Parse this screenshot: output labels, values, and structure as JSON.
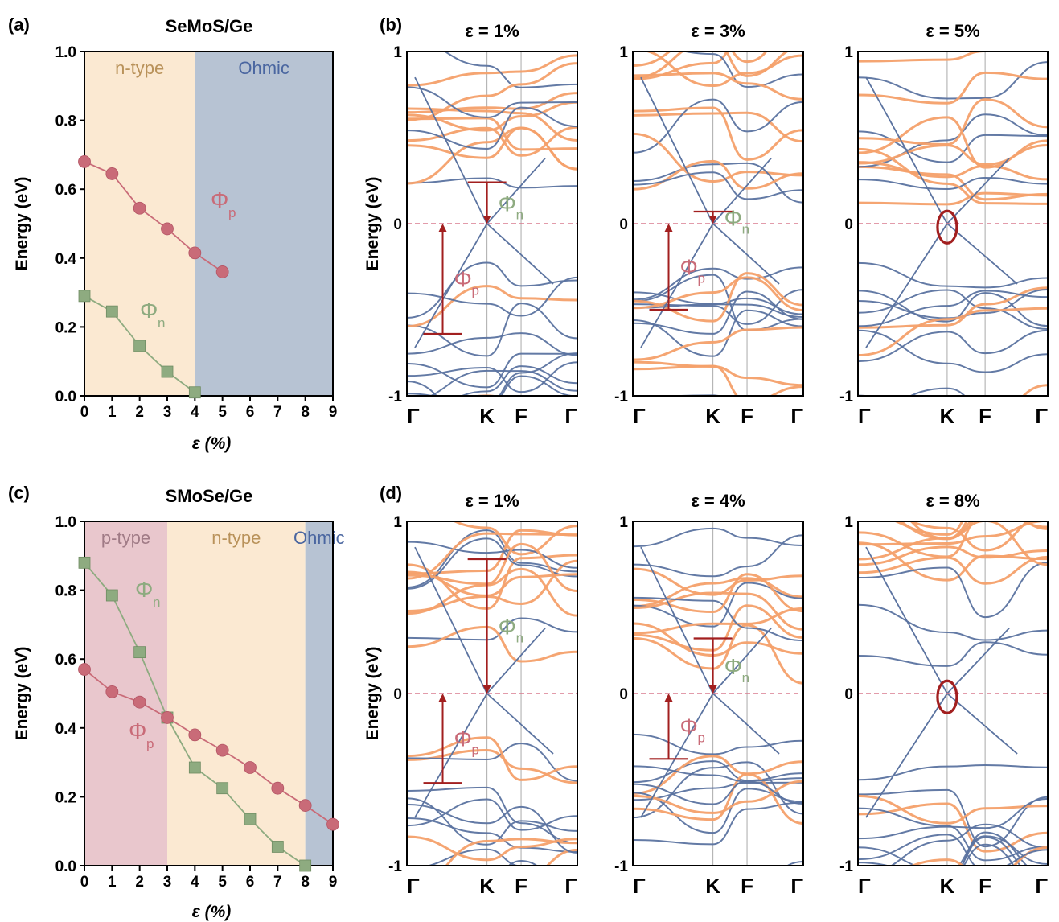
{
  "colors": {
    "ntype_bg": "#fbe9d2",
    "ptype_bg": "#e9c7cd",
    "ohmic_bg": "#b7c3d3",
    "phi_p": "#c96b78",
    "phi_n": "#8eab80",
    "band_orange": "#f4a06a",
    "band_blue": "#5b73a0",
    "arrow": "#a21f1f",
    "fermi": "#d97a8e"
  },
  "chart_data": [
    {
      "panel": "(a)",
      "type": "line",
      "title": "SeMoS/Ge",
      "xlabel": "ε (%)",
      "ylabel": "Energy (eV)",
      "xlim": [
        0,
        9
      ],
      "ylim": [
        0,
        1.0
      ],
      "xticks": [
        "0",
        "1",
        "2",
        "3",
        "4",
        "5",
        "6",
        "7",
        "8",
        "9"
      ],
      "yticks": [
        "0.0",
        "0.2",
        "0.4",
        "0.6",
        "0.8",
        "1.0"
      ],
      "regions": [
        {
          "label": "n-type",
          "from": 0,
          "to": 4
        },
        {
          "label": "Ohmic",
          "from": 4,
          "to": 9
        }
      ],
      "series": [
        {
          "name": "Φ",
          "sub": "p",
          "marker": "circle",
          "x": [
            0,
            1,
            2,
            3,
            4,
            5
          ],
          "y": [
            0.68,
            0.645,
            0.545,
            0.485,
            0.415,
            0.36
          ]
        },
        {
          "name": "Φ",
          "sub": "n",
          "marker": "square",
          "x": [
            0,
            1,
            2,
            3,
            4
          ],
          "y": [
            0.29,
            0.245,
            0.145,
            0.07,
            0.01
          ]
        }
      ]
    },
    {
      "panel": "(c)",
      "type": "line",
      "title": "SMoSe/Ge",
      "xlabel": "ε (%)",
      "ylabel": "Energy (eV)",
      "xlim": [
        0,
        9
      ],
      "ylim": [
        0,
        1.0
      ],
      "xticks": [
        "0",
        "1",
        "2",
        "3",
        "4",
        "5",
        "6",
        "7",
        "8",
        "9"
      ],
      "yticks": [
        "0.0",
        "0.2",
        "0.4",
        "0.6",
        "0.8",
        "1.0"
      ],
      "regions": [
        {
          "label": "p-type",
          "from": 0,
          "to": 3
        },
        {
          "label": "n-type",
          "from": 3,
          "to": 8
        },
        {
          "label": "Ohmic",
          "from": 8,
          "to": 9
        }
      ],
      "series": [
        {
          "name": "Φ",
          "sub": "n",
          "marker": "square",
          "x": [
            0,
            1,
            2,
            3,
            4,
            5,
            6,
            7,
            8
          ],
          "y": [
            0.88,
            0.785,
            0.62,
            0.43,
            0.285,
            0.225,
            0.135,
            0.055,
            0.0
          ]
        },
        {
          "name": "Φ",
          "sub": "p",
          "marker": "circle",
          "x": [
            0,
            1,
            2,
            3,
            4,
            5,
            6,
            7,
            8,
            9
          ],
          "y": [
            0.57,
            0.505,
            0.475,
            0.43,
            0.38,
            0.335,
            0.285,
            0.225,
            0.175,
            0.12
          ]
        }
      ]
    }
  ],
  "band_panels": {
    "b": {
      "label": "(b)",
      "ylabel": "Energy (eV)",
      "yticks": [
        "-1",
        "0",
        "1"
      ],
      "kpoints": [
        "Γ",
        "K",
        "F",
        "Γ"
      ],
      "plots": [
        {
          "title": "ε = 1%",
          "phi_n": {
            "from": 0.24,
            "to": 0.0
          },
          "phi_p": {
            "from": 0.0,
            "to": -0.64
          }
        },
        {
          "title": "ε = 3%",
          "phi_n": {
            "from": 0.07,
            "to": 0.0
          },
          "phi_p": {
            "from": 0.0,
            "to": -0.5
          }
        },
        {
          "title": "ε = 5%",
          "ohmic_mark": true
        }
      ]
    },
    "d": {
      "label": "(d)",
      "ylabel": "Energy (eV)",
      "yticks": [
        "-1",
        "0",
        "1"
      ],
      "kpoints": [
        "Γ",
        "K",
        "F",
        "Γ"
      ],
      "plots": [
        {
          "title": "ε = 1%",
          "phi_n": {
            "from": 0.78,
            "to": 0.0
          },
          "phi_p": {
            "from": 0.0,
            "to": -0.52
          }
        },
        {
          "title": "ε = 4%",
          "phi_n": {
            "from": 0.32,
            "to": 0.0
          },
          "phi_p": {
            "from": 0.0,
            "to": -0.38
          }
        },
        {
          "title": "ε = 8%",
          "ohmic_mark": true
        }
      ]
    }
  }
}
